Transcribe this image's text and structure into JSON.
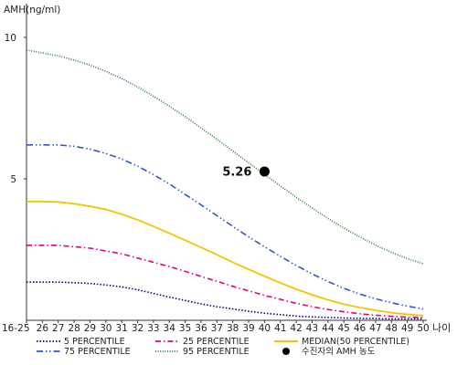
{
  "chart_data": {
    "type": "line",
    "ylabel": "AMH(ng/ml)",
    "xlabel": "나이",
    "ylim": [
      0,
      11
    ],
    "yticks": [
      5,
      10
    ],
    "categories": [
      "16-25",
      "26",
      "27",
      "28",
      "29",
      "30",
      "31",
      "32",
      "33",
      "34",
      "35",
      "36",
      "37",
      "38",
      "39",
      "40",
      "41",
      "42",
      "43",
      "44",
      "45",
      "46",
      "47",
      "48",
      "49",
      "50"
    ],
    "series": [
      {
        "name": "5 PERCENTILE",
        "color": "#000080",
        "dash": "dotted",
        "values": [
          1.35,
          1.35,
          1.35,
          1.33,
          1.3,
          1.25,
          1.18,
          1.08,
          0.95,
          0.82,
          0.7,
          0.58,
          0.48,
          0.4,
          0.32,
          0.25,
          0.2,
          0.15,
          0.12,
          0.1,
          0.08,
          0.07,
          0.06,
          0.05,
          0.05,
          0.05
        ]
      },
      {
        "name": "25 PERCENTILE",
        "color": "#e6007e",
        "dash": "dashdot",
        "values": [
          2.65,
          2.65,
          2.65,
          2.6,
          2.55,
          2.45,
          2.35,
          2.2,
          2.05,
          1.9,
          1.73,
          1.55,
          1.38,
          1.2,
          1.04,
          0.88,
          0.74,
          0.6,
          0.48,
          0.38,
          0.3,
          0.23,
          0.18,
          0.14,
          0.11,
          0.1
        ]
      },
      {
        "name": "MEDIAN(50 PERCENTILE)",
        "color": "#f2c500",
        "dash": "solid",
        "values": [
          4.2,
          4.2,
          4.18,
          4.12,
          4.03,
          3.92,
          3.75,
          3.55,
          3.32,
          3.08,
          2.83,
          2.58,
          2.32,
          2.05,
          1.8,
          1.56,
          1.32,
          1.1,
          0.9,
          0.72,
          0.57,
          0.45,
          0.35,
          0.27,
          0.21,
          0.17
        ]
      },
      {
        "name": "75 PERCENTILE",
        "color": "#3355cc",
        "dash": "dashdotdot",
        "values": [
          6.2,
          6.2,
          6.2,
          6.15,
          6.05,
          5.9,
          5.7,
          5.45,
          5.15,
          4.82,
          4.45,
          4.08,
          3.7,
          3.32,
          2.95,
          2.6,
          2.26,
          1.94,
          1.64,
          1.37,
          1.13,
          0.93,
          0.76,
          0.62,
          0.5,
          0.4
        ]
      },
      {
        "name": "95 PERCENTILE",
        "color": "#2e7d32",
        "dash": "densedot",
        "values": [
          9.55,
          9.45,
          9.35,
          9.2,
          9.02,
          8.8,
          8.55,
          8.25,
          7.92,
          7.57,
          7.2,
          6.8,
          6.4,
          5.98,
          5.57,
          5.15,
          4.75,
          4.35,
          3.97,
          3.6,
          3.26,
          2.95,
          2.66,
          2.4,
          2.18,
          2.0
        ]
      }
    ],
    "patient": {
      "name": "수진자의 AMH 농도",
      "category": "40",
      "value": 5.26,
      "label": "5.26",
      "color": "#000000"
    },
    "grid": false,
    "legend_position": "bottom"
  }
}
